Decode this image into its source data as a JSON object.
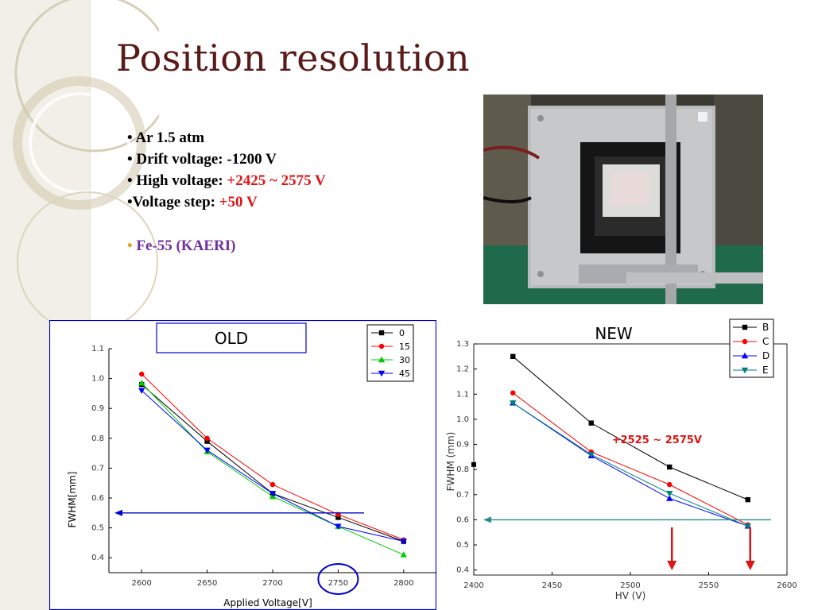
{
  "slide": {
    "title": "Position resolution",
    "bullets": [
      {
        "label": "Ar 1.5 atm",
        "value": ""
      },
      {
        "label": "Drift voltage: -1200 V",
        "value": ""
      },
      {
        "label": "High voltage: ",
        "value": "+2425 ~ 2575 V"
      },
      {
        "label": "Voltage step: ",
        "value": "+50 V"
      }
    ],
    "source_label": "Fe-55 (KAERI)",
    "colors": {
      "title": "#5a1a17",
      "highlight": "#e01414",
      "source": "#7030a0",
      "source_bullet": "#e8a32c"
    }
  },
  "photo": {
    "icon": "detector-photo-icon"
  },
  "chart_data": [
    {
      "type": "line",
      "label": "OLD",
      "xlabel": "Applied Voltage[V]",
      "ylabel": "FWHM[mm]",
      "xlim": [
        2575,
        2825
      ],
      "ylim": [
        0.35,
        1.1
      ],
      "xticks": [
        2600,
        2650,
        2700,
        2750,
        2800
      ],
      "yticks": [
        0.4,
        0.5,
        0.6,
        0.7,
        0.8,
        0.9,
        1.0,
        1.1
      ],
      "x": [
        2600,
        2650,
        2700,
        2750,
        2800
      ],
      "series": [
        {
          "name": "0",
          "color": "#000000",
          "marker": "square",
          "values": [
            0.98,
            0.79,
            0.615,
            0.535,
            0.455
          ]
        },
        {
          "name": "15",
          "color": "#ff0000",
          "marker": "circle",
          "values": [
            1.015,
            0.8,
            0.645,
            0.545,
            0.46
          ]
        },
        {
          "name": "30",
          "color": "#00cc00",
          "marker": "triangle-up",
          "values": [
            0.985,
            0.755,
            0.605,
            0.505,
            0.41
          ]
        },
        {
          "name": "45",
          "color": "#0000ff",
          "marker": "triangle-down",
          "values": [
            0.96,
            0.76,
            0.615,
            0.505,
            0.455
          ]
        }
      ],
      "reference_line": {
        "y": 0.55,
        "color": "#0000cc"
      },
      "highlight": {
        "x": 2750,
        "color": "#0000cc"
      },
      "legend": "top-right",
      "grid": false
    },
    {
      "type": "line",
      "label": "NEW",
      "xlabel": "HV (V)",
      "ylabel": "FWHM (mm)",
      "xlim": [
        2400,
        2600
      ],
      "ylim": [
        0.38,
        1.3
      ],
      "xticks": [
        "2400",
        "2450",
        "2500",
        "2550",
        "2600"
      ],
      "yticks": [
        0.4,
        0.5,
        0.6,
        0.7,
        0.8,
        0.9,
        1.0,
        1.1,
        1.2,
        1.3
      ],
      "x": [
        2425,
        2475,
        2525,
        2575
      ],
      "series": [
        {
          "name": "B",
          "color": "#000000",
          "marker": "square",
          "values": [
            1.25,
            0.985,
            0.81,
            0.68
          ]
        },
        {
          "name": "C",
          "color": "#ff0000",
          "marker": "circle",
          "values": [
            1.105,
            0.87,
            0.74,
            0.58
          ]
        },
        {
          "name": "D",
          "color": "#0000ff",
          "marker": "triangle-up",
          "values": [
            1.065,
            0.855,
            0.685,
            0.575
          ]
        },
        {
          "name": "E",
          "color": "#008080",
          "marker": "triangle-down",
          "values": [
            1.065,
            0.86,
            0.705,
            0.575
          ]
        }
      ],
      "reference_line": {
        "y": 0.6,
        "color": "#2e8b8b"
      },
      "annotation": {
        "text": "+2525 ~ 2575V",
        "color": "#e01414"
      },
      "arrows_at": [
        2525,
        2575
      ],
      "stray_point": {
        "x": 2400,
        "y": 0.82
      },
      "legend": "top-right",
      "grid": false
    }
  ]
}
